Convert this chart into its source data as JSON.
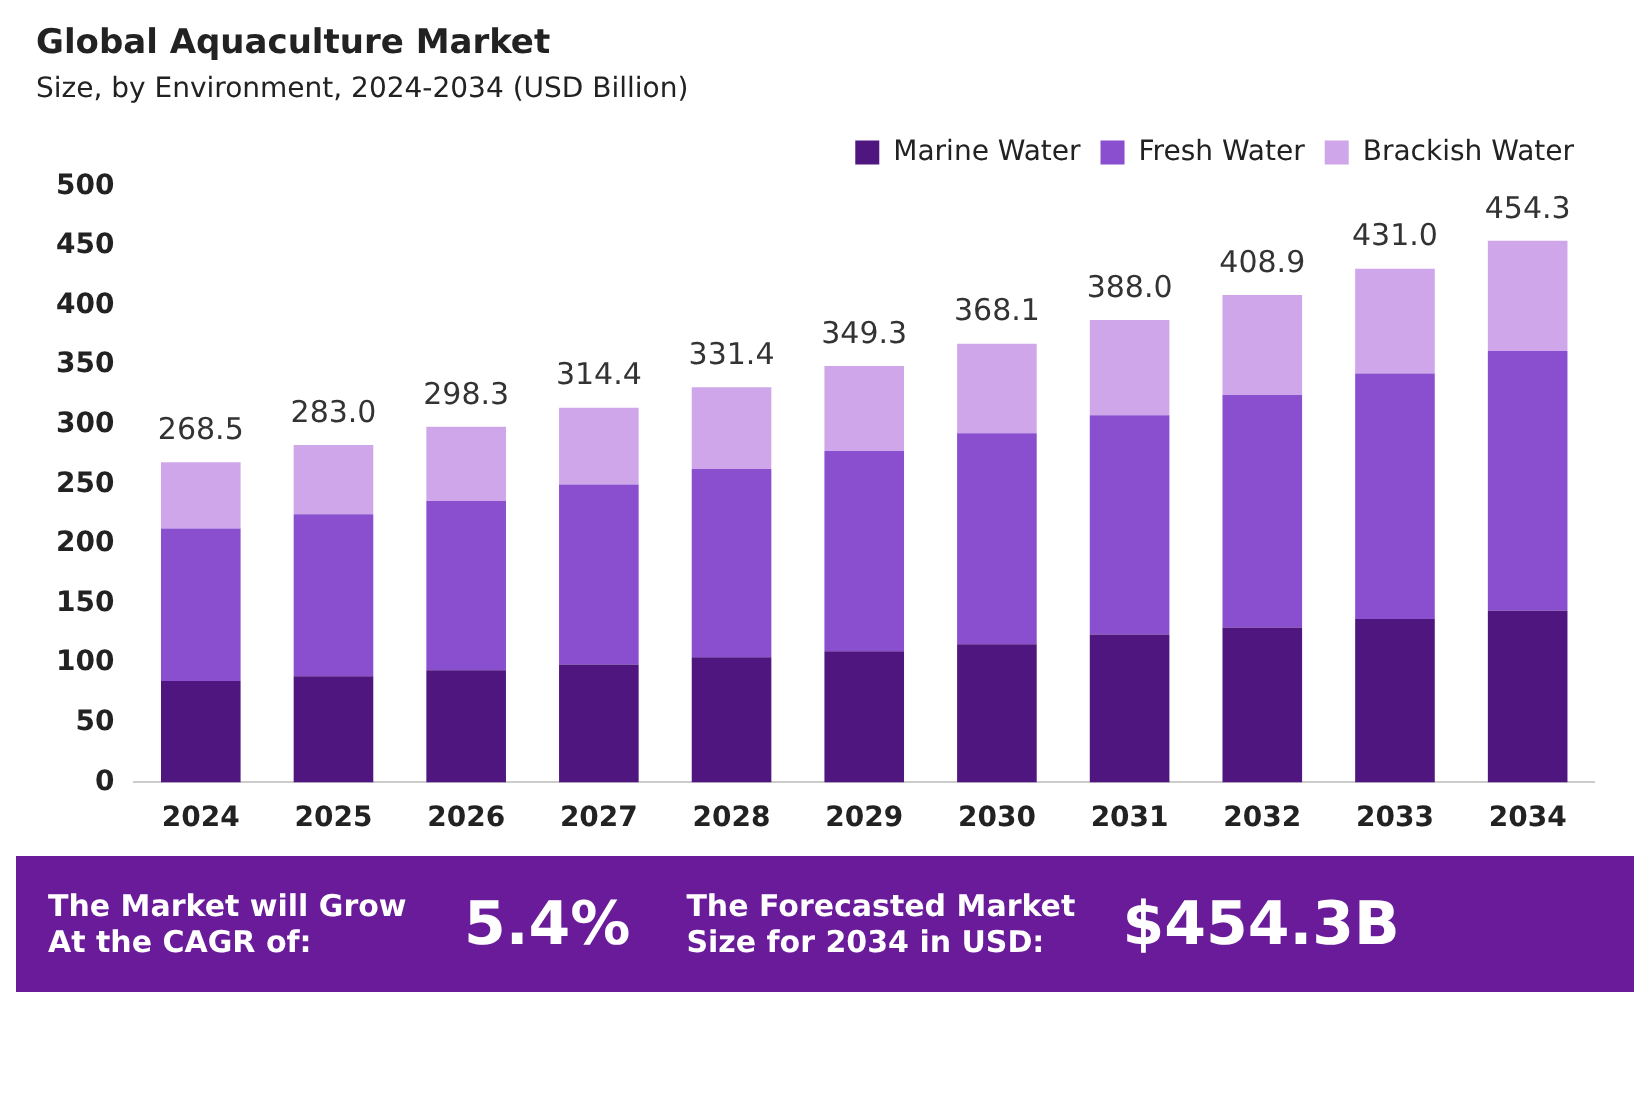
{
  "chart_data": {
    "type": "bar",
    "title": "Global Aquaculture Market",
    "subtitle": "Size, by Environment, 2024-2034 (USD Billion)",
    "categories": [
      "2024",
      "2025",
      "2026",
      "2027",
      "2028",
      "2029",
      "2030",
      "2031",
      "2032",
      "2033",
      "2034"
    ],
    "stacked": true,
    "series": [
      {
        "name": "Marine Water",
        "color": "#4f1680",
        "values": [
          85,
          89,
          94,
          99,
          105,
          110,
          116,
          124,
          130,
          137,
          144
        ]
      },
      {
        "name": "Fresh Water",
        "color": "#8a4fcf",
        "values": [
          128,
          136,
          142,
          151,
          158,
          168,
          177,
          184,
          195,
          206,
          218
        ]
      },
      {
        "name": "Brackish Water",
        "color": "#d0a6ea",
        "values": [
          55.5,
          58,
          62.3,
          64.4,
          68.4,
          71.3,
          75.1,
          80,
          83.9,
          88,
          92.3
        ]
      }
    ],
    "totals": [
      "268.5",
      "283.0",
      "298.3",
      "314.4",
      "331.4",
      "349.3",
      "368.1",
      "388.0",
      "408.9",
      "431.0",
      "454.3"
    ],
    "ylim": [
      0,
      500
    ],
    "yticks": [
      0,
      50,
      100,
      150,
      200,
      250,
      300,
      350,
      400,
      450,
      500
    ],
    "grid": false,
    "legend": "top right",
    "annotations": [
      "The Market will Grow At the CAGR of:",
      "5.4%",
      "The Forecasted Market Size for 2034 in USD:",
      "$454.3B"
    ]
  }
}
